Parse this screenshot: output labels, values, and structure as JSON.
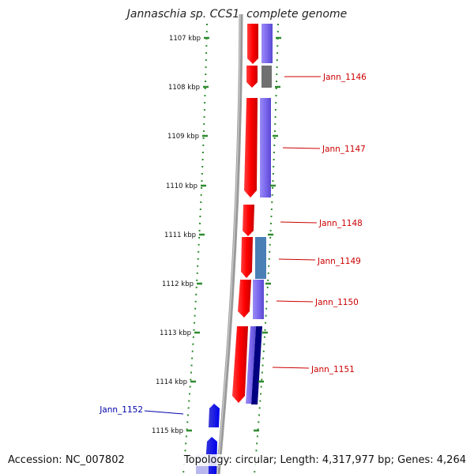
{
  "title": "Jannaschia sp. CCS1, complete genome",
  "footer": {
    "accession": "Accession: NC_007802",
    "stats": "Topology: circular; Length: 4,317,977 bp; Genes: 4,264"
  },
  "ticks": [
    "1107 kbp",
    "1108 kbp",
    "1109 kbp",
    "1110 kbp",
    "1111 kbp",
    "1112 kbp",
    "1113 kbp",
    "1114 kbp",
    "1115 kbp"
  ],
  "genes": [
    {
      "label": "Jann_1146",
      "color": "#cc0000"
    },
    {
      "label": "Jann_1147",
      "color": "#cc0000"
    },
    {
      "label": "Jann_1148",
      "color": "#cc0000"
    },
    {
      "label": "Jann_1149",
      "color": "#cc0000"
    },
    {
      "label": "Jann_1150",
      "color": "#cc0000"
    },
    {
      "label": "Jann_1151",
      "color": "#cc0000"
    },
    {
      "label": "Jann_1152",
      "color": "#0000aa"
    }
  ],
  "colors": {
    "cds": "#ff0000",
    "reverse_cds": "#0000ff",
    "cog_blue": "#7b68ee",
    "cog_gray": "#707070",
    "cog_steel": "#4a7fb5",
    "cog_navy": "#000080",
    "tick": "#2e8b2e",
    "backbone": "#888888"
  }
}
